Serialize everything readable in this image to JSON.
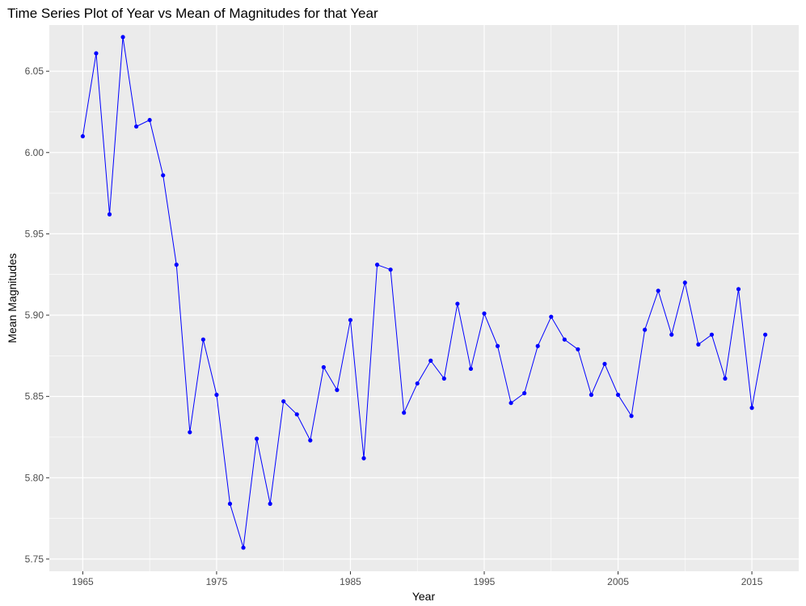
{
  "chart_data": {
    "type": "line",
    "title": "Time Series Plot of Year vs Mean of Magnitudes for that Year",
    "xlabel": "Year",
    "ylabel": "Mean Magnitudes",
    "xlim": [
      1962.5,
      2018.5
    ],
    "ylim": [
      5.7425,
      6.0784
    ],
    "x_ticks": [
      1965,
      1975,
      1985,
      1995,
      2005,
      2015
    ],
    "y_ticks": [
      5.75,
      5.8,
      5.85,
      5.9,
      5.95,
      6.0,
      6.05
    ],
    "y_tick_labels": [
      "5.75",
      "5.80",
      "5.85",
      "5.90",
      "5.95",
      "6.00",
      "6.05"
    ],
    "grid": true,
    "legend": "none",
    "colors": {
      "line": "#0000ff",
      "point": "#0000ff",
      "panel": "#ebebeb",
      "grid": "#ffffff"
    },
    "series": [
      {
        "x": [
          1965,
          1966,
          1967,
          1968,
          1969,
          1970,
          1971,
          1972,
          1973,
          1974,
          1975,
          1976,
          1977,
          1978,
          1979,
          1980,
          1981,
          1982,
          1983,
          1984,
          1985,
          1986,
          1987,
          1988,
          1989,
          1990,
          1991,
          1992,
          1993,
          1994,
          1995,
          1996,
          1997,
          1998,
          1999,
          2000,
          2001,
          2002,
          2003,
          2004,
          2005,
          2006,
          2007,
          2008,
          2009,
          2010,
          2011,
          2012,
          2013,
          2014,
          2015,
          2016
        ],
        "y": [
          6.01,
          6.061,
          5.962,
          6.071,
          6.016,
          6.02,
          5.986,
          5.931,
          5.828,
          5.885,
          5.851,
          5.784,
          5.757,
          5.824,
          5.784,
          5.847,
          5.839,
          5.823,
          5.868,
          5.854,
          5.897,
          5.812,
          5.931,
          5.928,
          5.84,
          5.858,
          5.872,
          5.861,
          5.907,
          5.867,
          5.901,
          5.881,
          5.846,
          5.852,
          5.881,
          5.899,
          5.885,
          5.879,
          5.851,
          5.87,
          5.851,
          5.838,
          5.891,
          5.915,
          5.888,
          5.92,
          5.882,
          5.888,
          5.861,
          5.916,
          5.843,
          5.888
        ]
      }
    ]
  }
}
